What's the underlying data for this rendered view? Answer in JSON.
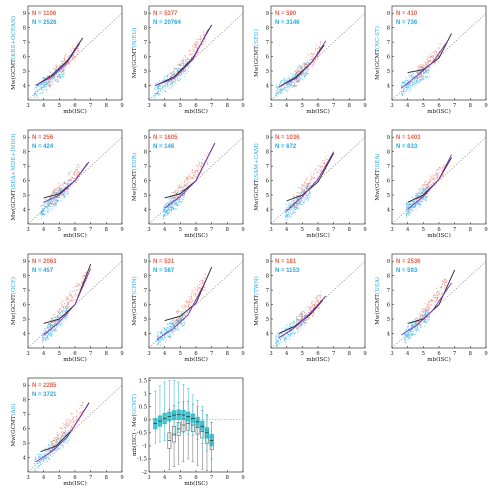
{
  "colors": {
    "red": "#e8604c",
    "blue": "#27a9e1",
    "black_curve": "#222222",
    "purple_curve": "#7b2fbe",
    "one_to_one": "#888888",
    "box_cyan": "#1fb6c4",
    "box_gray": "#666666"
  },
  "chart_data": [
    {
      "type": "scatter",
      "ylabel_main": "Mw(GCMT",
      "ylabel_tail": "(KRS+OCEAN)",
      "xlabel": "mb(ISC)",
      "n_red": "N = 1106",
      "n_blue": "N = 2526",
      "xlim": [
        3,
        9
      ],
      "ylim": [
        3,
        9.5
      ],
      "xticks": [
        3,
        4,
        5,
        6,
        7,
        8,
        9
      ],
      "yticks": [
        4,
        5,
        6,
        7,
        8,
        9
      ],
      "red_cloud": {
        "x": [
          4.2,
          6.3
        ],
        "y": [
          4.2,
          6.7
        ]
      },
      "blue_cloud": {
        "x": [
          3.4,
          5.4
        ],
        "y": [
          3.6,
          5.2
        ]
      },
      "black_curve": [
        [
          3.5,
          4.0
        ],
        [
          4.5,
          4.7
        ],
        [
          5.5,
          5.7
        ],
        [
          6.5,
          7.3
        ]
      ],
      "purple_curve": [
        [
          3.5,
          4.0
        ],
        [
          4.5,
          4.6
        ],
        [
          5.5,
          5.6
        ],
        [
          6.3,
          6.9
        ]
      ]
    },
    {
      "type": "scatter",
      "ylabel_main": "Mw(GCMT",
      "ylabel_tail": "(N/EU)",
      "xlabel": "mb(ISC)",
      "n_red": "N = 5377",
      "n_blue": "N = 20764",
      "xlim": [
        3,
        9
      ],
      "ylim": [
        3,
        9.5
      ],
      "xticks": [
        3,
        4,
        5,
        6,
        7,
        8,
        9
      ],
      "yticks": [
        4,
        5,
        6,
        7,
        8,
        9
      ],
      "red_cloud": {
        "x": [
          4.3,
          6.6
        ],
        "y": [
          4.2,
          7.4
        ]
      },
      "blue_cloud": {
        "x": [
          3.3,
          5.6
        ],
        "y": [
          3.5,
          5.5
        ]
      },
      "black_curve": [
        [
          3.4,
          4.0
        ],
        [
          4.6,
          4.6
        ],
        [
          5.8,
          5.9
        ],
        [
          7.0,
          8.2
        ]
      ],
      "purple_curve": [
        [
          3.4,
          4.0
        ],
        [
          4.6,
          4.5
        ],
        [
          5.8,
          5.8
        ],
        [
          6.8,
          7.9
        ]
      ]
    },
    {
      "type": "scatter",
      "ylabel_main": "Mw(GCMT",
      "ylabel_tail": "(SEU)",
      "xlabel": "mb(ISC)",
      "n_red": "N = 590",
      "n_blue": "N = 3146",
      "xlim": [
        3,
        9
      ],
      "ylim": [
        3,
        9.5
      ],
      "xticks": [
        3,
        4,
        5,
        6,
        7,
        8,
        9
      ],
      "yticks": [
        4,
        5,
        6,
        7,
        8,
        9
      ],
      "red_cloud": {
        "x": [
          4.4,
          6.2
        ],
        "y": [
          4.3,
          6.6
        ]
      },
      "blue_cloud": {
        "x": [
          3.3,
          5.4
        ],
        "y": [
          3.5,
          5.2
        ]
      },
      "black_curve": [
        [
          3.5,
          3.9
        ],
        [
          4.6,
          4.6
        ],
        [
          5.6,
          5.6
        ],
        [
          6.4,
          6.8
        ]
      ],
      "purple_curve": [
        [
          3.5,
          3.9
        ],
        [
          4.6,
          4.5
        ],
        [
          5.6,
          5.6
        ],
        [
          6.5,
          7.1
        ]
      ]
    },
    {
      "type": "scatter",
      "ylabel_main": "Mw(GCMT",
      "ylabel_tail": "(NC-ST)",
      "xlabel": "mb(ISC)",
      "n_red": "N = 410",
      "n_blue": "N = 736",
      "xlim": [
        3,
        9
      ],
      "ylim": [
        3,
        9.5
      ],
      "xticks": [
        3,
        4,
        5,
        6,
        7,
        8,
        9
      ],
      "yticks": [
        4,
        5,
        6,
        7,
        8,
        9
      ],
      "red_cloud": {
        "x": [
          4.6,
          6.1
        ],
        "y": [
          4.7,
          6.4
        ]
      },
      "blue_cloud": {
        "x": [
          3.6,
          5.4
        ],
        "y": [
          3.8,
          5.2
        ]
      },
      "black_curve": [
        [
          4.0,
          4.9
        ],
        [
          5.0,
          5.1
        ],
        [
          6.0,
          5.9
        ],
        [
          6.8,
          7.6
        ]
      ],
      "purple_curve": [
        [
          3.6,
          3.8
        ],
        [
          4.6,
          4.7
        ],
        [
          5.6,
          5.6
        ],
        [
          6.5,
          7.0
        ]
      ]
    },
    {
      "type": "scatter",
      "ylabel_main": "Mw(GCMT",
      "ylabel_tail": "(SEA+MDE+INDO)",
      "xlabel": "mb(ISC)",
      "n_red": "N = 256",
      "n_blue": "N = 424",
      "xlim": [
        3,
        9
      ],
      "ylim": [
        3,
        9.5
      ],
      "xticks": [
        3,
        4,
        5,
        6,
        7,
        8,
        9
      ],
      "yticks": [
        4,
        5,
        6,
        7,
        8,
        9
      ],
      "red_cloud": {
        "x": [
          4.4,
          6.3
        ],
        "y": [
          4.6,
          6.7
        ]
      },
      "blue_cloud": {
        "x": [
          3.8,
          5.6
        ],
        "y": [
          3.8,
          5.6
        ]
      },
      "black_curve": [
        [
          4.0,
          4.8
        ],
        [
          5.0,
          5.1
        ],
        [
          6.0,
          6.0
        ],
        [
          6.8,
          7.2
        ]
      ],
      "purple_curve": [
        [
          4.0,
          4.5
        ],
        [
          5.0,
          5.0
        ],
        [
          6.0,
          6.0
        ],
        [
          6.9,
          7.3
        ]
      ]
    },
    {
      "type": "scatter",
      "ylabel_main": "Mw(GCMT",
      "ylabel_tail": "(EUR)",
      "xlabel": "mb(ISC)",
      "n_red": "N = 1605",
      "n_blue": "N = 146",
      "xlim": [
        3,
        9
      ],
      "ylim": [
        3,
        9.5
      ],
      "xticks": [
        3,
        4,
        5,
        6,
        7,
        8,
        9
      ],
      "yticks": [
        4,
        5,
        6,
        7,
        8,
        9
      ],
      "red_cloud": {
        "x": [
          4.4,
          6.8
        ],
        "y": [
          4.6,
          7.5
        ]
      },
      "blue_cloud": {
        "x": [
          3.9,
          5.3
        ],
        "y": [
          3.8,
          5.2
        ]
      },
      "black_curve": [
        [
          4.0,
          4.8
        ],
        [
          5.0,
          5.1
        ],
        [
          6.0,
          6.0
        ],
        [
          7.2,
          8.6
        ]
      ],
      "purple_curve": [
        [
          4.0,
          4.1
        ],
        [
          5.0,
          4.9
        ],
        [
          6.0,
          6.0
        ],
        [
          7.2,
          8.6
        ]
      ]
    },
    {
      "type": "scatter",
      "ylabel_main": "Mw(GCMT",
      "ylabel_tail": "(SAM+CAM)",
      "xlabel": "mb(ISC)",
      "n_red": "N = 1036",
      "n_blue": "N = 672",
      "xlim": [
        3,
        9
      ],
      "ylim": [
        3,
        9.5
      ],
      "xticks": [
        3,
        4,
        5,
        6,
        7,
        8,
        9
      ],
      "yticks": [
        4,
        5,
        6,
        7,
        8,
        9
      ],
      "red_cloud": {
        "x": [
          4.4,
          6.6
        ],
        "y": [
          4.5,
          7.3
        ]
      },
      "blue_cloud": {
        "x": [
          3.9,
          5.5
        ],
        "y": [
          3.6,
          5.4
        ]
      },
      "black_curve": [
        [
          4.0,
          4.6
        ],
        [
          5.0,
          5.0
        ],
        [
          6.0,
          5.9
        ],
        [
          7.0,
          7.9
        ]
      ],
      "purple_curve": [
        [
          4.0,
          3.9
        ],
        [
          5.0,
          4.9
        ],
        [
          6.0,
          6.1
        ],
        [
          7.0,
          8.0
        ]
      ]
    },
    {
      "type": "scatter",
      "ylabel_main": "Mw(GCMT",
      "ylabel_tail": "(SEA)",
      "xlabel": "mb(ISC)",
      "n_red": "N = 1403",
      "n_blue": "N = 633",
      "xlim": [
        3,
        9
      ],
      "ylim": [
        3,
        9.5
      ],
      "xticks": [
        3,
        4,
        5,
        6,
        7,
        8,
        9
      ],
      "yticks": [
        4,
        5,
        6,
        7,
        8,
        9
      ],
      "red_cloud": {
        "x": [
          4.5,
          6.4
        ],
        "y": [
          4.6,
          7.0
        ]
      },
      "blue_cloud": {
        "x": [
          3.9,
          5.3
        ],
        "y": [
          3.9,
          5.3
        ]
      },
      "black_curve": [
        [
          4.0,
          4.5
        ],
        [
          5.0,
          5.0
        ],
        [
          6.0,
          6.1
        ],
        [
          6.8,
          7.6
        ]
      ],
      "purple_curve": [
        [
          4.0,
          4.0
        ],
        [
          5.0,
          4.9
        ],
        [
          6.0,
          6.1
        ],
        [
          6.8,
          7.8
        ]
      ]
    },
    {
      "type": "scatter",
      "ylabel_main": "Mw(GCMT",
      "ylabel_tail": "(OCE)",
      "xlabel": "mb(ISC)",
      "n_red": "N = 2063",
      "n_blue": "N = 457",
      "xlim": [
        3,
        9
      ],
      "ylim": [
        3,
        9.5
      ],
      "xticks": [
        3,
        4,
        5,
        6,
        7,
        8,
        9
      ],
      "yticks": [
        4,
        5,
        6,
        7,
        8,
        9
      ],
      "red_cloud": {
        "x": [
          4.4,
          6.8
        ],
        "y": [
          4.6,
          8.0
        ]
      },
      "blue_cloud": {
        "x": [
          3.9,
          5.6
        ],
        "y": [
          3.7,
          5.6
        ]
      },
      "black_curve": [
        [
          4.0,
          4.7
        ],
        [
          5.0,
          5.0
        ],
        [
          6.0,
          6.0
        ],
        [
          7.0,
          8.8
        ]
      ],
      "purple_curve": [
        [
          4.0,
          3.9
        ],
        [
          5.0,
          4.8
        ],
        [
          6.0,
          6.0
        ],
        [
          7.0,
          8.5
        ]
      ]
    },
    {
      "type": "scatter",
      "ylabel_main": "Mw(GCMT",
      "ylabel_tail": "(CHN)",
      "xlabel": "mb(ISC)",
      "n_red": "N = 531",
      "n_blue": "N = 587",
      "xlim": [
        3,
        9
      ],
      "ylim": [
        3,
        9.5
      ],
      "xticks": [
        3,
        4,
        5,
        6,
        7,
        8,
        9
      ],
      "yticks": [
        4,
        5,
        6,
        7,
        8,
        9
      ],
      "red_cloud": {
        "x": [
          4.6,
          6.6
        ],
        "y": [
          4.7,
          7.6
        ]
      },
      "blue_cloud": {
        "x": [
          3.5,
          5.3
        ],
        "y": [
          3.5,
          5.2
        ]
      },
      "black_curve": [
        [
          4.0,
          4.9
        ],
        [
          5.0,
          5.2
        ],
        [
          6.0,
          6.1
        ],
        [
          7.0,
          8.6
        ]
      ],
      "purple_curve": [
        [
          3.5,
          3.6
        ],
        [
          4.5,
          4.3
        ],
        [
          5.5,
          5.3
        ],
        [
          6.6,
          7.6
        ]
      ]
    },
    {
      "type": "scatter",
      "ylabel_main": "Mw(GCMT",
      "ylabel_tail": "(TWN)",
      "xlabel": "mb(ISC)",
      "n_red": "N = 181",
      "n_blue": "N = 1153",
      "xlim": [
        3,
        9
      ],
      "ylim": [
        3,
        9.5
      ],
      "xticks": [
        3,
        4,
        5,
        6,
        7,
        8,
        9
      ],
      "yticks": [
        4,
        5,
        6,
        7,
        8,
        9
      ],
      "red_cloud": {
        "x": [
          4.6,
          6.2
        ],
        "y": [
          4.6,
          6.4
        ]
      },
      "blue_cloud": {
        "x": [
          3.3,
          5.3
        ],
        "y": [
          3.4,
          5.2
        ]
      },
      "black_curve": [
        [
          3.5,
          4.0
        ],
        [
          4.5,
          4.5
        ],
        [
          5.5,
          5.3
        ],
        [
          6.3,
          6.3
        ]
      ],
      "purple_curve": [
        [
          3.5,
          3.7
        ],
        [
          4.5,
          4.4
        ],
        [
          5.5,
          5.4
        ],
        [
          6.5,
          6.6
        ]
      ]
    },
    {
      "type": "scatter",
      "ylabel_main": "Mw(GCMT",
      "ylabel_tail": "(USA)",
      "xlabel": "mb(ISC)",
      "n_red": "N = 2536",
      "n_blue": "N = 593",
      "xlim": [
        3,
        9
      ],
      "ylim": [
        3,
        9.5
      ],
      "xticks": [
        3,
        4,
        5,
        6,
        7,
        8,
        9
      ],
      "yticks": [
        4,
        5,
        6,
        7,
        8,
        9
      ],
      "red_cloud": {
        "x": [
          4.5,
          6.5
        ],
        "y": [
          4.6,
          7.6
        ]
      },
      "blue_cloud": {
        "x": [
          3.8,
          5.4
        ],
        "y": [
          3.8,
          5.4
        ]
      },
      "black_curve": [
        [
          4.0,
          4.7
        ],
        [
          5.0,
          5.0
        ],
        [
          6.0,
          6.0
        ],
        [
          7.0,
          8.4
        ]
      ],
      "purple_curve": [
        [
          3.6,
          3.9
        ],
        [
          4.6,
          4.6
        ],
        [
          5.6,
          5.6
        ],
        [
          6.8,
          7.5
        ]
      ]
    },
    {
      "type": "scatter",
      "ylabel_main": "Mw(GCMT",
      "ylabel_tail": "(AS)",
      "xlabel": "mb(ISC)",
      "n_red": "N = 2285",
      "n_blue": "N = 3721",
      "xlim": [
        3,
        9
      ],
      "ylim": [
        3,
        9.5
      ],
      "xticks": [
        3,
        4,
        5,
        6,
        7,
        8,
        9
      ],
      "yticks": [
        4,
        5,
        6,
        7,
        8,
        9
      ],
      "red_cloud": {
        "x": [
          4.3,
          6.6
        ],
        "y": [
          4.5,
          7.6
        ]
      },
      "blue_cloud": {
        "x": [
          3.4,
          5.6
        ],
        "y": [
          3.5,
          5.6
        ]
      },
      "black_curve": [
        [
          3.8,
          4.4
        ],
        [
          4.8,
          4.8
        ],
        [
          5.8,
          5.9
        ],
        [
          6.9,
          7.8
        ]
      ],
      "purple_curve": [
        [
          3.5,
          3.7
        ],
        [
          4.5,
          4.4
        ],
        [
          5.5,
          5.4
        ],
        [
          6.8,
          7.6
        ]
      ]
    },
    {
      "type": "box",
      "xlabel": "mb(ISC)",
      "ylabel_main": "mb(ISC) - Mw(",
      "ylabel_tail": "GCMT)",
      "xlim": [
        3,
        9
      ],
      "ylim": [
        -2,
        1.6
      ],
      "xticks": [
        3,
        4,
        5,
        6,
        7,
        8,
        9
      ],
      "yticks": [
        -2,
        -1.5,
        -1,
        -0.5,
        0,
        0.5,
        1,
        1.5
      ],
      "cyan_boxes": [
        {
          "x": 3.4,
          "q1": -0.35,
          "med": -0.15,
          "q3": 0.05,
          "lo": -0.9,
          "hi": 1.1
        },
        {
          "x": 3.7,
          "q1": -0.25,
          "med": -0.05,
          "q3": 0.15,
          "lo": -0.85,
          "hi": 1.3
        },
        {
          "x": 4.0,
          "q1": -0.15,
          "med": 0.05,
          "q3": 0.25,
          "lo": -0.8,
          "hi": 1.45
        },
        {
          "x": 4.3,
          "q1": -0.05,
          "med": 0.12,
          "q3": 0.3,
          "lo": -0.7,
          "hi": 1.5
        },
        {
          "x": 4.6,
          "q1": 0.0,
          "med": 0.18,
          "q3": 0.35,
          "lo": -0.6,
          "hi": 1.5
        },
        {
          "x": 4.9,
          "q1": 0.02,
          "med": 0.2,
          "q3": 0.38,
          "lo": -0.5,
          "hi": 1.45
        },
        {
          "x": 5.2,
          "q1": 0.0,
          "med": 0.18,
          "q3": 0.36,
          "lo": -0.5,
          "hi": 1.35
        },
        {
          "x": 5.5,
          "q1": -0.05,
          "med": 0.12,
          "q3": 0.3,
          "lo": -0.55,
          "hi": 1.2
        },
        {
          "x": 5.8,
          "q1": -0.12,
          "med": 0.05,
          "q3": 0.22,
          "lo": -0.6,
          "hi": 0.95
        },
        {
          "x": 6.1,
          "q1": -0.25,
          "med": -0.08,
          "q3": 0.1,
          "lo": -0.75,
          "hi": 0.75
        },
        {
          "x": 6.4,
          "q1": -0.4,
          "med": -0.25,
          "q3": -0.05,
          "lo": -0.9,
          "hi": 0.5
        },
        {
          "x": 6.7,
          "q1": -0.7,
          "med": -0.5,
          "q3": -0.3,
          "lo": -1.2,
          "hi": 0.2
        },
        {
          "x": 7.0,
          "q1": -1.0,
          "med": -0.8,
          "q3": -0.55,
          "lo": -1.5,
          "hi": -0.1
        }
      ],
      "gray_boxes": [
        {
          "x": 4.3,
          "q1": -1.1,
          "med": -0.8,
          "q3": -0.5,
          "lo": -1.9,
          "hi": 0.4
        },
        {
          "x": 4.6,
          "q1": -0.85,
          "med": -0.55,
          "q3": -0.25,
          "lo": -1.8,
          "hi": 0.55
        },
        {
          "x": 4.9,
          "q1": -0.6,
          "med": -0.35,
          "q3": -0.1,
          "lo": -1.7,
          "hi": 0.65
        },
        {
          "x": 5.2,
          "q1": -0.45,
          "med": -0.2,
          "q3": 0.05,
          "lo": -1.6,
          "hi": 0.7
        },
        {
          "x": 5.5,
          "q1": -0.4,
          "med": -0.15,
          "q3": 0.1,
          "lo": -1.5,
          "hi": 0.7
        },
        {
          "x": 5.8,
          "q1": -0.45,
          "med": -0.2,
          "q3": 0.05,
          "lo": -1.6,
          "hi": 0.6
        },
        {
          "x": 6.1,
          "q1": -0.55,
          "med": -0.3,
          "q3": -0.05,
          "lo": -1.75,
          "hi": 0.5
        },
        {
          "x": 6.4,
          "q1": -0.7,
          "med": -0.45,
          "q3": -0.2,
          "lo": -1.9,
          "hi": 0.35
        },
        {
          "x": 6.7,
          "q1": -0.9,
          "med": -0.65,
          "q3": -0.4,
          "lo": -1.95,
          "hi": 0.15
        },
        {
          "x": 7.0,
          "q1": -1.15,
          "med": -0.9,
          "q3": -0.65,
          "lo": -2.0,
          "hi": -0.1
        }
      ]
    }
  ]
}
